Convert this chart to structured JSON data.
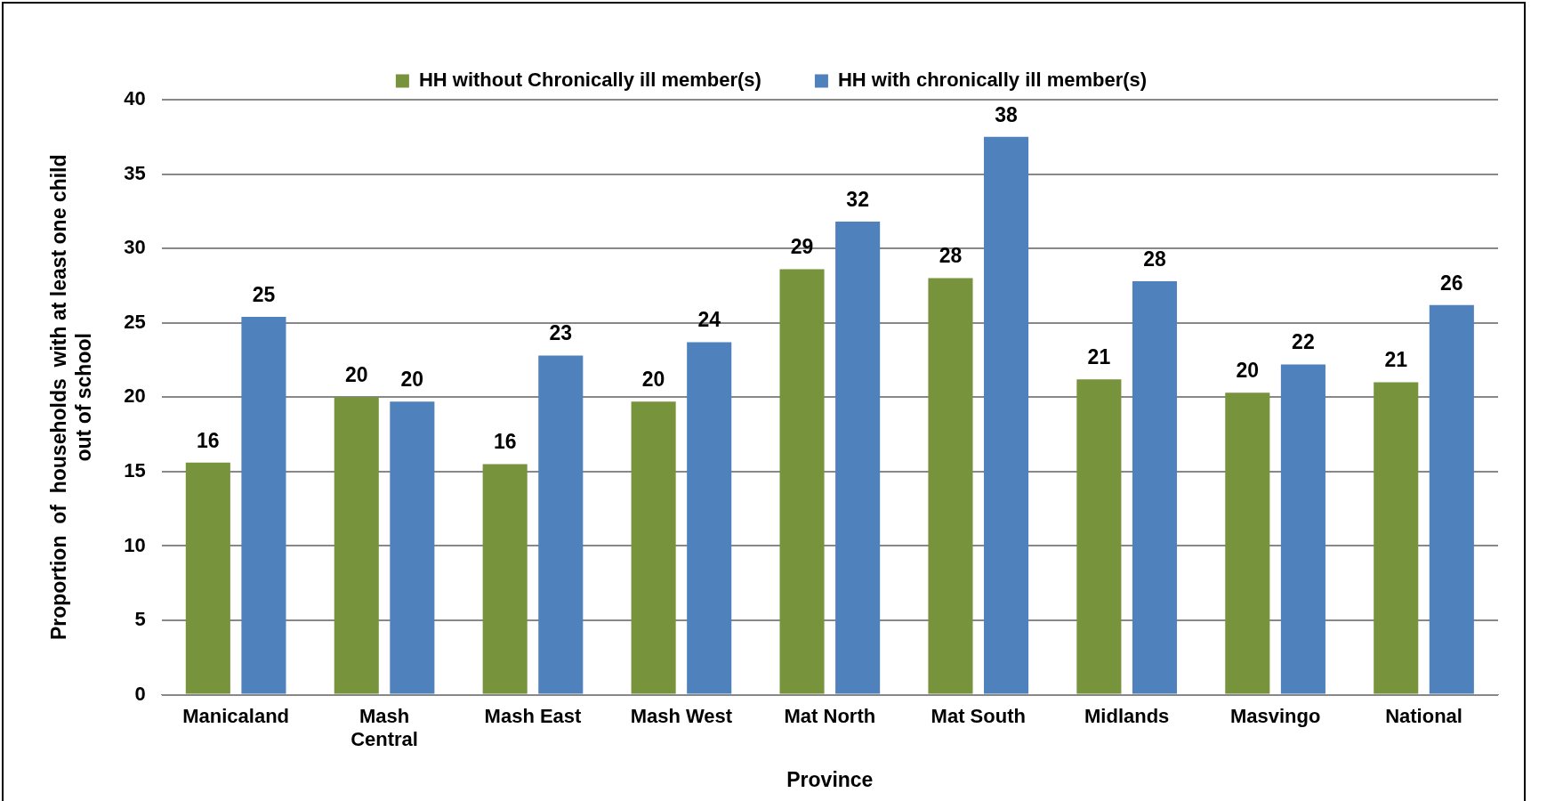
{
  "chart_data": {
    "type": "bar",
    "xlabel": "Province",
    "ylabel": "Proportion  of  households  with at least one child\nout of school",
    "categories": [
      "Manicaland",
      "Mash Central",
      "Mash East",
      "Mash West",
      "Mat North",
      "Mat South",
      "Midlands",
      "Masvingo",
      "National"
    ],
    "series": [
      {
        "name": "HH without Chronically ill member(s)",
        "color": "#77933c",
        "values": [
          15.6,
          20.0,
          15.5,
          19.7,
          28.6,
          28.0,
          21.2,
          20.3,
          21.0
        ],
        "value_labels": [
          "16",
          "20",
          "16",
          "20",
          "29",
          "28",
          "21",
          "20",
          "21"
        ]
      },
      {
        "name": "HH with chronically ill member(s)",
        "color": "#4f81bd",
        "values": [
          25.4,
          19.7,
          22.8,
          23.7,
          31.8,
          37.5,
          27.8,
          22.2,
          26.2
        ],
        "value_labels": [
          "25",
          "20",
          "23",
          "24",
          "32",
          "38",
          "28",
          "22",
          "26"
        ]
      }
    ],
    "ylim": [
      0,
      40
    ],
    "yticks": [
      0,
      5,
      10,
      15,
      20,
      25,
      30,
      35,
      40
    ],
    "grid": "y",
    "legend": "top"
  }
}
